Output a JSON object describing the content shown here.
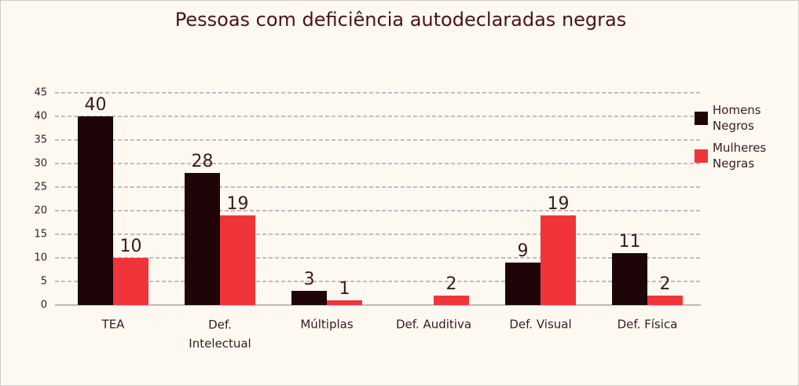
{
  "chart_data": {
    "type": "bar",
    "title": "Pessoas com deficiência autodeclaradas negras",
    "categories": [
      "TEA",
      "Def. Intelectual",
      "Múltiplas",
      "Def. Auditiva",
      "Def. Visual",
      "Def. Física"
    ],
    "series": [
      {
        "name": "Homens Negros",
        "color": "#1e0508",
        "values": [
          40,
          28,
          3,
          null,
          9,
          11
        ]
      },
      {
        "name": "Mulheres Negras",
        "color": "#f0353a",
        "values": [
          10,
          19,
          1,
          2,
          19,
          2
        ]
      }
    ],
    "ylim": [
      0,
      45
    ],
    "yticks": [
      0,
      5,
      10,
      15,
      20,
      25,
      30,
      35,
      40,
      45
    ],
    "grid": true,
    "legend": "right"
  }
}
